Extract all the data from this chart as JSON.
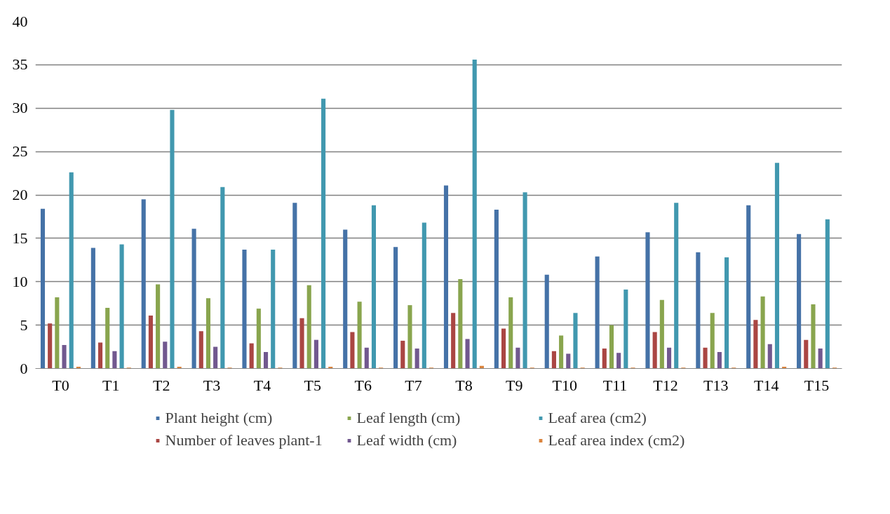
{
  "chart_data": {
    "type": "bar",
    "categories": [
      "T0",
      "T1",
      "T2",
      "T3",
      "T4",
      "T5",
      "T6",
      "T7",
      "T8",
      "T9",
      "T10",
      "T11",
      "T12",
      "T13",
      "T14",
      "T15"
    ],
    "series": [
      {
        "name": "Plant height (cm)",
        "color": "#4572a7",
        "values": [
          18.4,
          13.9,
          19.5,
          16.1,
          13.7,
          19.1,
          16.0,
          14.0,
          21.1,
          18.3,
          10.8,
          12.9,
          15.7,
          13.4,
          18.8,
          15.5
        ]
      },
      {
        "name": "Number of leaves plant-1",
        "color": "#aa4643",
        "values": [
          5.2,
          3.0,
          6.1,
          4.3,
          2.9,
          5.8,
          4.2,
          3.2,
          6.4,
          4.6,
          2.0,
          2.3,
          4.2,
          2.4,
          5.6,
          3.3
        ]
      },
      {
        "name": "Leaf length (cm)",
        "color": "#89a54e",
        "values": [
          8.2,
          7.0,
          9.7,
          8.1,
          6.9,
          9.6,
          7.7,
          7.3,
          10.3,
          8.2,
          3.8,
          5.0,
          7.9,
          6.4,
          8.3,
          7.4
        ]
      },
      {
        "name": "Leaf width (cm)",
        "color": "#71588f",
        "values": [
          2.7,
          2.0,
          3.1,
          2.5,
          1.9,
          3.3,
          2.4,
          2.3,
          3.4,
          2.4,
          1.7,
          1.8,
          2.4,
          1.9,
          2.8,
          2.3
        ]
      },
      {
        "name": "Leaf area (cm2)",
        "color": "#4198af",
        "values": [
          22.6,
          14.3,
          29.8,
          20.9,
          13.7,
          31.1,
          18.8,
          16.8,
          35.6,
          20.3,
          6.4,
          9.1,
          19.1,
          12.8,
          23.7,
          17.2
        ]
      },
      {
        "name": "Leaf area index (cm2)",
        "color": "#db843d",
        "values": [
          0.2,
          0.1,
          0.2,
          0.1,
          0.1,
          0.2,
          0.1,
          0.1,
          0.3,
          0.1,
          0.1,
          0.1,
          0.1,
          0.1,
          0.2,
          0.1
        ]
      }
    ],
    "ylim": [
      0,
      40
    ],
    "yticks": [
      0,
      5,
      10,
      15,
      20,
      25,
      30,
      35,
      40
    ],
    "grid": "y",
    "legend": "bottom"
  }
}
